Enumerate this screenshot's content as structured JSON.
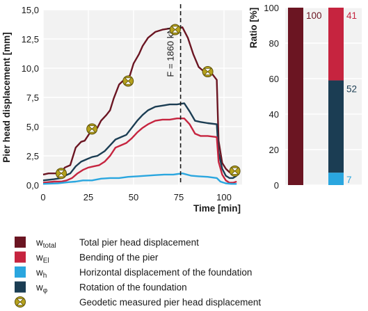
{
  "chart_data": [
    {
      "type": "line",
      "xlabel": "Time [min]",
      "ylabel": "Pier head displacement [mm]",
      "xlim": [
        0,
        110
      ],
      "ylim": [
        0,
        15
      ],
      "x_ticks": [
        "0",
        "25",
        "50",
        "75",
        "100"
      ],
      "y_ticks": [
        "0,0",
        "2,5",
        "5,0",
        "7,5",
        "10,0",
        "12,5",
        "15,0"
      ],
      "grid": true,
      "annotation": {
        "text": "F = 1860 kN",
        "x": 76
      },
      "series": [
        {
          "key": "total",
          "name": "w_total",
          "color": "#6b1522",
          "points": [
            [
              0,
              0.9
            ],
            [
              3,
              1.0
            ],
            [
              8,
              1.0
            ],
            [
              10,
              1.1
            ],
            [
              12,
              1.5
            ],
            [
              15,
              1.7
            ],
            [
              18,
              3.2
            ],
            [
              21,
              3.7
            ],
            [
              23,
              3.8
            ],
            [
              26,
              4.5
            ],
            [
              28,
              4.7
            ],
            [
              30,
              4.9
            ],
            [
              32,
              5.5
            ],
            [
              35,
              6.0
            ],
            [
              37,
              6.4
            ],
            [
              39,
              7.4
            ],
            [
              42,
              8.6
            ],
            [
              44,
              8.9
            ],
            [
              46,
              9.0
            ],
            [
              48,
              9.4
            ],
            [
              50,
              10.4
            ],
            [
              53,
              11.2
            ],
            [
              55,
              11.9
            ],
            [
              58,
              12.6
            ],
            [
              62,
              13.1
            ],
            [
              66,
              13.3
            ],
            [
              70,
              13.4
            ],
            [
              74,
              13.4
            ],
            [
              77,
              13.5
            ],
            [
              80,
              12.6
            ],
            [
              83,
              11.2
            ],
            [
              86,
              10.1
            ],
            [
              89,
              9.7
            ],
            [
              91,
              9.6
            ],
            [
              93,
              9.6
            ],
            [
              96,
              9.0
            ],
            [
              97,
              3.8
            ],
            [
              99,
              1.9
            ],
            [
              101,
              1.4
            ],
            [
              103,
              1.1
            ],
            [
              105,
              1.2
            ],
            [
              107,
              1.3
            ]
          ]
        },
        {
          "key": "rotation",
          "name": "w_phi",
          "color": "#1b3d53",
          "points": [
            [
              0,
              0.4
            ],
            [
              6,
              0.5
            ],
            [
              10,
              0.6
            ],
            [
              12,
              0.8
            ],
            [
              15,
              1.0
            ],
            [
              18,
              1.6
            ],
            [
              21,
              2.0
            ],
            [
              24,
              2.2
            ],
            [
              27,
              2.4
            ],
            [
              30,
              2.5
            ],
            [
              34,
              2.9
            ],
            [
              37,
              3.4
            ],
            [
              40,
              3.9
            ],
            [
              43,
              4.1
            ],
            [
              46,
              4.3
            ],
            [
              49,
              4.9
            ],
            [
              52,
              5.5
            ],
            [
              55,
              6.0
            ],
            [
              58,
              6.4
            ],
            [
              62,
              6.7
            ],
            [
              66,
              6.8
            ],
            [
              70,
              6.9
            ],
            [
              74,
              6.9
            ],
            [
              78,
              7.0
            ],
            [
              81,
              6.3
            ],
            [
              84,
              5.5
            ],
            [
              87,
              5.4
            ],
            [
              91,
              5.3
            ],
            [
              96,
              5.2
            ],
            [
              97,
              2.8
            ],
            [
              99,
              1.4
            ],
            [
              101,
              0.8
            ],
            [
              103,
              0.6
            ],
            [
              105,
              0.6
            ],
            [
              107,
              0.8
            ]
          ]
        },
        {
          "key": "bending",
          "name": "w_El",
          "color": "#c6243f",
          "points": [
            [
              0,
              0.2
            ],
            [
              6,
              0.3
            ],
            [
              10,
              0.3
            ],
            [
              13,
              0.4
            ],
            [
              16,
              0.6
            ],
            [
              19,
              1.0
            ],
            [
              22,
              1.3
            ],
            [
              25,
              1.5
            ],
            [
              28,
              1.6
            ],
            [
              31,
              1.7
            ],
            [
              34,
              2.0
            ],
            [
              37,
              2.5
            ],
            [
              40,
              3.2
            ],
            [
              43,
              3.4
            ],
            [
              46,
              3.6
            ],
            [
              49,
              4.0
            ],
            [
              52,
              4.5
            ],
            [
              55,
              4.9
            ],
            [
              58,
              5.2
            ],
            [
              62,
              5.5
            ],
            [
              66,
              5.6
            ],
            [
              70,
              5.6
            ],
            [
              74,
              5.7
            ],
            [
              78,
              5.7
            ],
            [
              81,
              5.2
            ],
            [
              84,
              4.4
            ],
            [
              87,
              4.2
            ],
            [
              91,
              4.2
            ],
            [
              96,
              4.1
            ],
            [
              97,
              2.0
            ],
            [
              99,
              0.9
            ],
            [
              101,
              0.4
            ],
            [
              103,
              0.2
            ],
            [
              105,
              0.2
            ],
            [
              107,
              0.3
            ]
          ]
        },
        {
          "key": "horizontal",
          "name": "w_h",
          "color": "#2aa6df",
          "points": [
            [
              0,
              0.1
            ],
            [
              8,
              0.15
            ],
            [
              14,
              0.25
            ],
            [
              18,
              0.3
            ],
            [
              22,
              0.4
            ],
            [
              27,
              0.4
            ],
            [
              32,
              0.55
            ],
            [
              37,
              0.6
            ],
            [
              42,
              0.6
            ],
            [
              47,
              0.7
            ],
            [
              52,
              0.75
            ],
            [
              57,
              0.8
            ],
            [
              62,
              0.85
            ],
            [
              67,
              0.9
            ],
            [
              72,
              0.9
            ],
            [
              77,
              1.0
            ],
            [
              82,
              0.8
            ],
            [
              86,
              0.75
            ],
            [
              91,
              0.7
            ],
            [
              96,
              0.6
            ],
            [
              98,
              0.3
            ],
            [
              101,
              0.15
            ],
            [
              104,
              0.1
            ],
            [
              107,
              0.1
            ]
          ]
        }
      ],
      "geodetic_points": [
        [
          10,
          1.0
        ],
        [
          27,
          4.8
        ],
        [
          47,
          8.9
        ],
        [
          73,
          13.3
        ],
        [
          91,
          9.7
        ],
        [
          106,
          1.2
        ]
      ]
    },
    {
      "type": "bar",
      "ylabel": "Ratio [%]",
      "ylim": [
        0,
        100
      ],
      "y_ticks": [
        "0",
        "20",
        "40",
        "60",
        "80",
        "100"
      ],
      "grid": true,
      "bars": [
        {
          "segments": [
            {
              "series": "total",
              "value": 100,
              "label": "100",
              "color": "#6b1522"
            }
          ]
        },
        {
          "segments": [
            {
              "series": "horizontal",
              "value": 7,
              "label": "7",
              "color": "#2aa6df"
            },
            {
              "series": "rotation",
              "value": 52,
              "label": "52",
              "color": "#1b3d53"
            },
            {
              "series": "bending",
              "value": 41,
              "label": "41",
              "color": "#c6243f"
            }
          ]
        }
      ]
    }
  ],
  "legend": {
    "items": [
      {
        "key": "total",
        "symbol_main": "w",
        "symbol_sub": "total",
        "text": "Total pier head displacement",
        "color": "#6b1522"
      },
      {
        "key": "bending",
        "symbol_main": "w",
        "symbol_sub": "El",
        "text": "Bending of the pier",
        "color": "#c6243f"
      },
      {
        "key": "horizontal",
        "symbol_main": "w",
        "symbol_sub": "h",
        "text": "Horizontal displacement of the foundation",
        "color": "#2aa6df"
      },
      {
        "key": "rotation",
        "symbol_main": "w",
        "symbol_sub": "φ",
        "text": "Rotation of the foundation",
        "color": "#1b3d53"
      },
      {
        "key": "geodetic",
        "symbol_main": "",
        "symbol_sub": "",
        "text": "Geodetic measured pier head displacement",
        "color": "#b5a11c"
      }
    ]
  }
}
